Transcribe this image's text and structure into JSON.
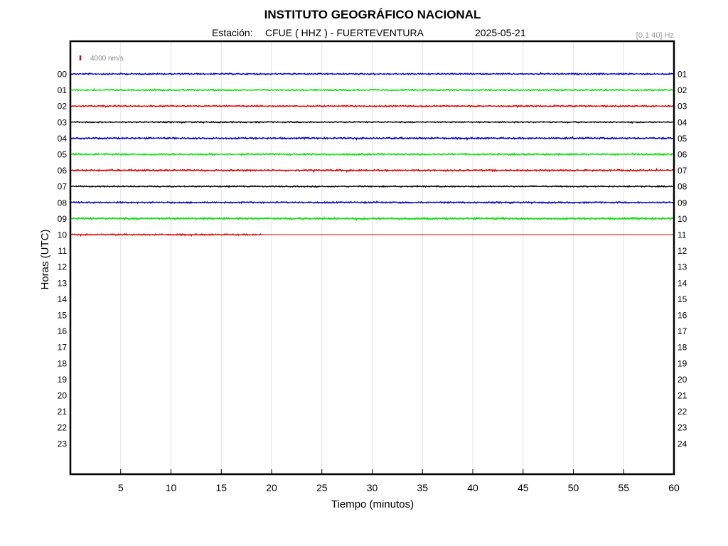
{
  "header": {
    "title": "INSTITUTO GEOGRÁFICO NACIONAL",
    "station_label": "Estación:",
    "station": "CFUE ( HHZ ) - FUERTEVENTURA",
    "date": "2025-05-21",
    "filter": "[0.1 40] Hz"
  },
  "scale": {
    "label": "4000 nm/s",
    "color": "#e00000"
  },
  "chart_data": {
    "type": "line",
    "title": "INSTITUTO GEOGRÁFICO NACIONAL",
    "xlabel": "Tiempo (minutos)",
    "ylabel": "Horas (UTC)",
    "xlim": [
      0,
      60
    ],
    "x_ticks": [
      5,
      10,
      15,
      20,
      25,
      30,
      35,
      40,
      45,
      50,
      55,
      60
    ],
    "y_ticks_left": [
      "00",
      "01",
      "02",
      "03",
      "04",
      "05",
      "06",
      "07",
      "08",
      "09",
      "10",
      "11",
      "12",
      "13",
      "14",
      "15",
      "16",
      "17",
      "18",
      "19",
      "20",
      "21",
      "22",
      "23"
    ],
    "y_ticks_right": [
      "01",
      "02",
      "03",
      "04",
      "05",
      "06",
      "07",
      "08",
      "09",
      "10",
      "11",
      "12",
      "13",
      "14",
      "15",
      "16",
      "17",
      "18",
      "19",
      "20",
      "21",
      "22",
      "23",
      "24"
    ],
    "grid": "vertical",
    "traces": [
      {
        "hour": 0,
        "color": "#0000c0",
        "data_end_minute": 60,
        "amplitude_level": 0.7
      },
      {
        "hour": 1,
        "color": "#00e000",
        "data_end_minute": 60,
        "amplitude_level": 0.7
      },
      {
        "hour": 2,
        "color": "#e00000",
        "data_end_minute": 60,
        "amplitude_level": 0.7
      },
      {
        "hour": 3,
        "color": "#000000",
        "data_end_minute": 60,
        "amplitude_level": 0.6
      },
      {
        "hour": 4,
        "color": "#0000c0",
        "data_end_minute": 60,
        "amplitude_level": 0.8
      },
      {
        "hour": 5,
        "color": "#00e000",
        "data_end_minute": 60,
        "amplitude_level": 0.8
      },
      {
        "hour": 6,
        "color": "#e00000",
        "data_end_minute": 60,
        "amplitude_level": 0.8
      },
      {
        "hour": 7,
        "color": "#000000",
        "data_end_minute": 60,
        "amplitude_level": 0.6
      },
      {
        "hour": 8,
        "color": "#0000c0",
        "data_end_minute": 60,
        "amplitude_level": 0.7
      },
      {
        "hour": 9,
        "color": "#00e000",
        "data_end_minute": 60,
        "amplitude_level": 0.9
      },
      {
        "hour": 10,
        "color": "#e00000",
        "data_end_minute": 19.2,
        "amplitude_level": 0.7
      }
    ]
  }
}
